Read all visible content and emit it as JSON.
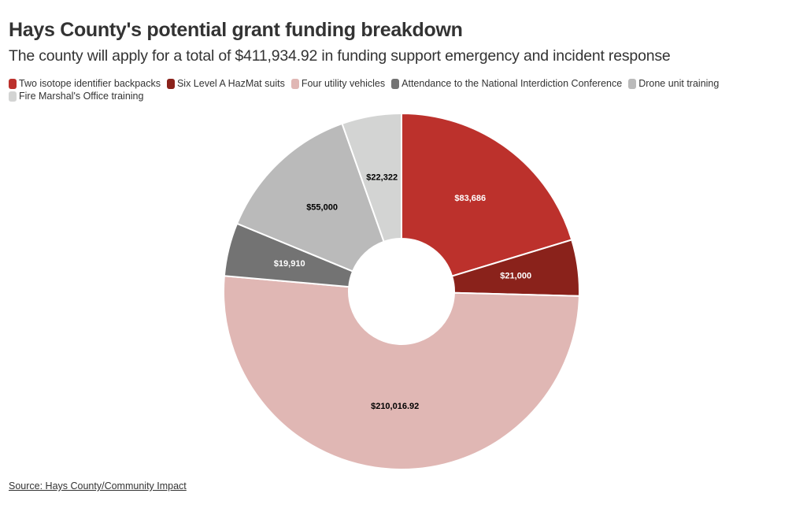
{
  "header": {
    "title": "Hays County's potential grant funding breakdown",
    "subtitle": "The county will apply for a total of $411,934.92 in funding support emergency and incident response"
  },
  "chart_data": {
    "type": "pie",
    "style": "donut",
    "title": "Hays County's potential grant funding breakdown",
    "subtitle": "The county will apply for a total of $411,934.92 in funding support emergency and incident response",
    "legend_position": "top-left",
    "slices": [
      {
        "name": "Two isotope identifier backpacks",
        "value": 83686,
        "label": "$83,686",
        "color": "#bc312c",
        "label_color": "#ffffff"
      },
      {
        "name": "Six Level A HazMat suits",
        "value": 21000,
        "label": "$21,000",
        "color": "#8a221b",
        "label_color": "#ffffff"
      },
      {
        "name": "Four utility vehicles",
        "value": 210016.92,
        "label": "$210,016.92",
        "color": "#e0b7b4",
        "label_color": "#000000"
      },
      {
        "name": "Attendance to the National Interdiction Conference",
        "value": 19910,
        "label": "$19,910",
        "color": "#737373",
        "label_color": "#ffffff"
      },
      {
        "name": "Drone unit training",
        "value": 55000,
        "label": "$55,000",
        "color": "#bababa",
        "label_color": "#000000"
      },
      {
        "name": "Fire Marshal's Office training",
        "value": 22322,
        "label": "$22,322",
        "color": "#d3d4d3",
        "label_color": "#000000"
      }
    ]
  },
  "footer": {
    "source": "Source: Hays County/Community Impact"
  }
}
